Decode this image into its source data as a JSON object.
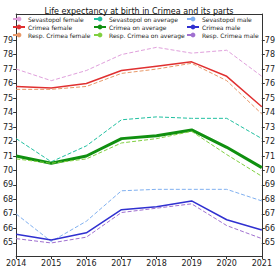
{
  "chart_data": {
    "type": "line",
    "title": "Life expectancy at birth in Crimea and its parts",
    "x": [
      2014,
      2015,
      2016,
      2017,
      2018,
      2019,
      2020,
      2021
    ],
    "xlim": [
      2014,
      2021
    ],
    "xticks": [
      2014,
      2015,
      2016,
      2017,
      2018,
      2019,
      2020,
      2021
    ],
    "ylim": [
      64.1,
      80.8
    ],
    "yticks": [
      65,
      66,
      67,
      68,
      69,
      70,
      71,
      72,
      73,
      74,
      75,
      76,
      77,
      78,
      79
    ],
    "y2lim": [
      64.1,
      80.8
    ],
    "y2ticks": [
      65,
      66,
      67,
      68,
      69,
      70,
      71,
      72,
      73,
      74,
      75,
      76,
      77,
      78,
      79
    ],
    "grid": false,
    "legend": "top",
    "series": [
      {
        "name": "Sevastopol female",
        "color": "#e0a0dc",
        "line_style": "dashed",
        "values": [
          77.0,
          76.2,
          76.9,
          78.0,
          78.5,
          78.1,
          78.3,
          76.5
        ]
      },
      {
        "name": "Crimea female",
        "color": "#e03030",
        "line_style": "solid",
        "values": [
          75.8,
          75.7,
          76.0,
          76.9,
          77.2,
          77.5,
          76.5,
          74.4
        ]
      },
      {
        "name": "Resp. Crimea female",
        "color": "#e89868",
        "line_style": "dashed",
        "values": [
          75.6,
          75.6,
          75.8,
          76.7,
          77.0,
          77.4,
          76.2,
          73.9
        ]
      },
      {
        "name": "Sevastopol on average",
        "color": "#20c0a0",
        "line_style": "dashed",
        "values": [
          72.2,
          70.6,
          71.7,
          73.5,
          73.7,
          73.6,
          73.6,
          72.2
        ]
      },
      {
        "name": "Crimea on average",
        "color": "#109010",
        "line_style": "solid",
        "values": [
          71.0,
          70.5,
          71.0,
          72.2,
          72.4,
          72.8,
          71.6,
          70.2
        ]
      },
      {
        "name": "Resp. Crimea on average",
        "color": "#80d040",
        "line_style": "dashed",
        "values": [
          70.8,
          70.5,
          70.8,
          71.9,
          72.2,
          72.7,
          71.1,
          69.6
        ]
      },
      {
        "name": "Sevastopol male",
        "color": "#80b0f0",
        "line_style": "dashed",
        "values": [
          67.0,
          65.1,
          66.5,
          68.6,
          68.7,
          68.7,
          68.7,
          67.9
        ]
      },
      {
        "name": "Crimea male",
        "color": "#3030d0",
        "line_style": "solid",
        "values": [
          65.6,
          65.2,
          65.7,
          67.3,
          67.5,
          67.9,
          66.6,
          65.9
        ]
      },
      {
        "name": "Resp. Crimea male",
        "color": "#a070d0",
        "line_style": "dashed",
        "values": [
          65.3,
          65.0,
          65.4,
          67.1,
          67.4,
          67.7,
          66.2,
          65.3
        ]
      }
    ]
  }
}
